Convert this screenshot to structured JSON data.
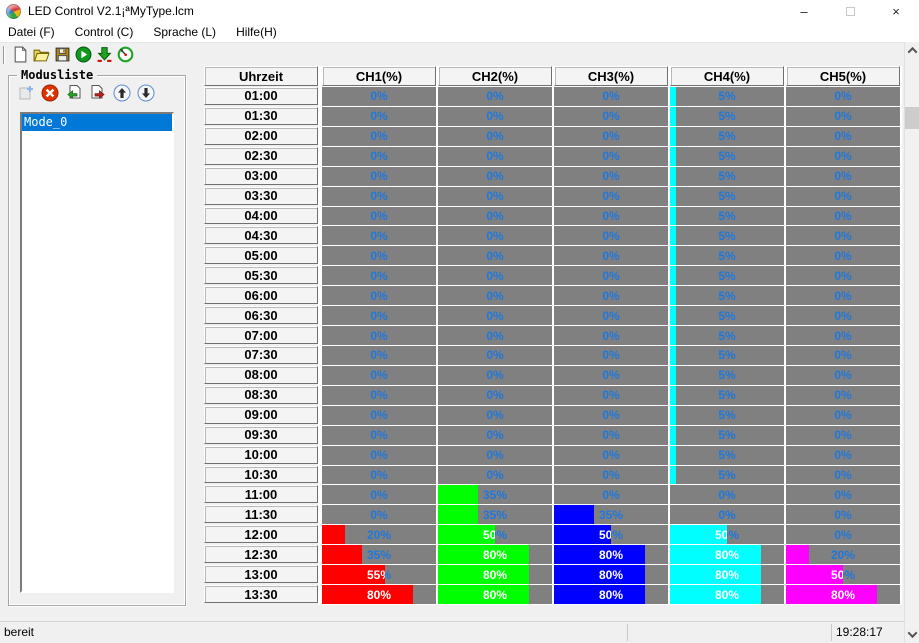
{
  "window": {
    "title": "LED Control V2.1¡ªMyType.lcm"
  },
  "title_bar": {
    "minimize": "–",
    "close": "×"
  },
  "menu": {
    "items": [
      "Datei (F)",
      "Control (C)",
      "Sprache (L)",
      "Hilfe(H)"
    ]
  },
  "toolbar": {
    "icons": [
      "new-file",
      "open-file",
      "save-file",
      "run",
      "download",
      "sync-time"
    ]
  },
  "mode_panel": {
    "title": "Modusliste",
    "toolbar_icons": [
      "add-mode",
      "delete-mode",
      "import-mode",
      "export-mode",
      "move-up",
      "move-down"
    ],
    "modes": [
      {
        "name": "Mode_0",
        "selected": true
      }
    ]
  },
  "table": {
    "columns": [
      "Uhrzeit",
      "CH1(%)",
      "CH2(%)",
      "CH3(%)",
      "CH4(%)",
      "CH5(%)"
    ],
    "channel_colors": [
      "#ff0000",
      "#00ff00",
      "#0000ff",
      "#00ffff",
      "#ff00ff"
    ],
    "cell_background": "#808080",
    "value_text_color": "#1e78dc",
    "rows": [
      {
        "time": "01:00",
        "values": [
          0,
          0,
          0,
          5,
          0
        ]
      },
      {
        "time": "01:30",
        "values": [
          0,
          0,
          0,
          5,
          0
        ]
      },
      {
        "time": "02:00",
        "values": [
          0,
          0,
          0,
          5,
          0
        ]
      },
      {
        "time": "02:30",
        "values": [
          0,
          0,
          0,
          5,
          0
        ]
      },
      {
        "time": "03:00",
        "values": [
          0,
          0,
          0,
          5,
          0
        ]
      },
      {
        "time": "03:30",
        "values": [
          0,
          0,
          0,
          5,
          0
        ]
      },
      {
        "time": "04:00",
        "values": [
          0,
          0,
          0,
          5,
          0
        ]
      },
      {
        "time": "04:30",
        "values": [
          0,
          0,
          0,
          5,
          0
        ]
      },
      {
        "time": "05:00",
        "values": [
          0,
          0,
          0,
          5,
          0
        ]
      },
      {
        "time": "05:30",
        "values": [
          0,
          0,
          0,
          5,
          0
        ]
      },
      {
        "time": "06:00",
        "values": [
          0,
          0,
          0,
          5,
          0
        ]
      },
      {
        "time": "06:30",
        "values": [
          0,
          0,
          0,
          5,
          0
        ]
      },
      {
        "time": "07:00",
        "values": [
          0,
          0,
          0,
          5,
          0
        ]
      },
      {
        "time": "07:30",
        "values": [
          0,
          0,
          0,
          5,
          0
        ]
      },
      {
        "time": "08:00",
        "values": [
          0,
          0,
          0,
          5,
          0
        ]
      },
      {
        "time": "08:30",
        "values": [
          0,
          0,
          0,
          5,
          0
        ]
      },
      {
        "time": "09:00",
        "values": [
          0,
          0,
          0,
          5,
          0
        ]
      },
      {
        "time": "09:30",
        "values": [
          0,
          0,
          0,
          5,
          0
        ]
      },
      {
        "time": "10:00",
        "values": [
          0,
          0,
          0,
          5,
          0
        ]
      },
      {
        "time": "10:30",
        "values": [
          0,
          0,
          0,
          5,
          0
        ]
      },
      {
        "time": "11:00",
        "values": [
          0,
          35,
          0,
          0,
          0
        ]
      },
      {
        "time": "11:30",
        "values": [
          0,
          35,
          35,
          0,
          0
        ]
      },
      {
        "time": "12:00",
        "values": [
          20,
          50,
          50,
          50,
          0
        ]
      },
      {
        "time": "12:30",
        "values": [
          35,
          80,
          80,
          80,
          20
        ]
      },
      {
        "time": "13:00",
        "values": [
          55,
          80,
          80,
          80,
          50
        ]
      },
      {
        "time": "13:30",
        "values": [
          80,
          80,
          80,
          80,
          80
        ]
      }
    ]
  },
  "status_bar": {
    "status": "bereit",
    "time": "19:28:17"
  },
  "colors": {
    "selection": "#0078d7",
    "window_bg": "#f0f0f0",
    "titlebar_bg": "#ffffff"
  }
}
